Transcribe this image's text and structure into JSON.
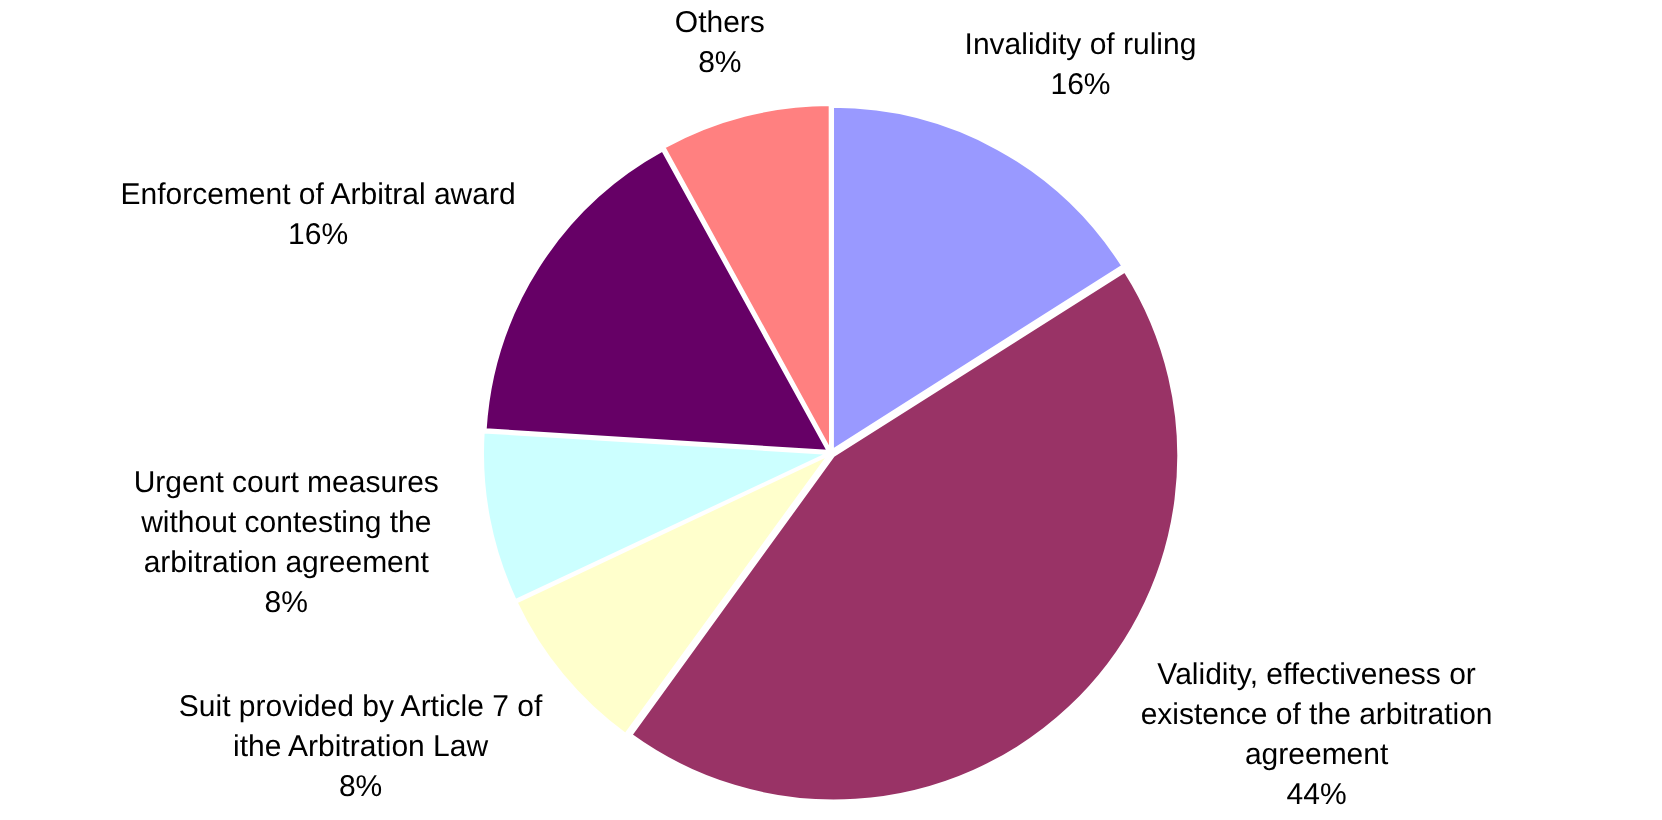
{
  "chart_data": {
    "type": "pie",
    "categories": [
      "Invalidity of ruling",
      "Validity, effectiveness or existence of the arbitration agreement",
      "Suit provided by Article 7 of ithe Arbitration Law",
      "Urgent court measures without contesting the arbitration agreement",
      "Enforcement of Arbitral award",
      "Others"
    ],
    "values": [
      16,
      44,
      8,
      8,
      16,
      8
    ],
    "value_labels": [
      "16%",
      "44%",
      "8%",
      "8%",
      "16%",
      "8%"
    ],
    "colors": [
      "#9999ff",
      "#993366",
      "#ffffcc",
      "#ccffff",
      "#660066",
      "#ff8080"
    ],
    "legend": false
  }
}
